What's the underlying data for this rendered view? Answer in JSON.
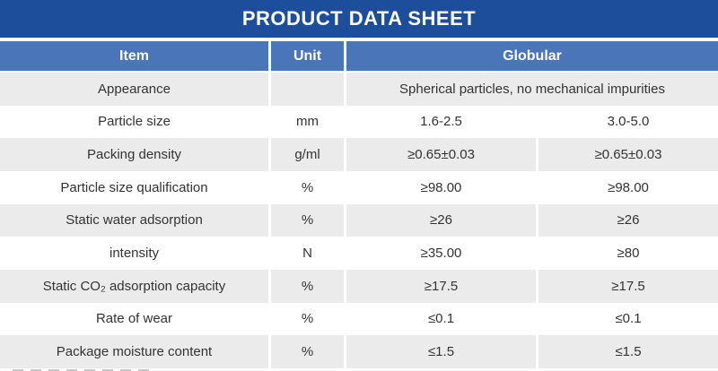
{
  "title": "PRODUCT DATA SHEET",
  "colors": {
    "title_bar": "#1d4e9b",
    "header_row": "#4a75b9",
    "row_alt": "#ebebeb",
    "row_white": "#ffffff",
    "text": "#333333"
  },
  "table": {
    "headers": {
      "item": "Item",
      "unit": "Unit",
      "group": "Globular"
    },
    "rows": [
      {
        "item": "Appearance",
        "unit": "",
        "value": "Spherical particles, no mechanical impurities"
      },
      {
        "item": "Particle size",
        "unit": "mm",
        "col1": "1.6-2.5",
        "col2": "3.0-5.0"
      },
      {
        "item": "Packing density",
        "unit": "g/ml",
        "col1": "≥0.65±0.03",
        "col2": "≥0.65±0.03"
      },
      {
        "item": "Particle size qualification",
        "unit": "%",
        "col1": "≥98.00",
        "col2": "≥98.00"
      },
      {
        "item": "Static water adsorption",
        "unit": "%",
        "col1": "≥26",
        "col2": "≥26"
      },
      {
        "item": "intensity",
        "unit": "N",
        "col1": "≥35.00",
        "col2": "≥80"
      },
      {
        "item": "Static CO₂ adsorption capacity",
        "unit": "%",
        "col1": "≥17.5",
        "col2": "≥17.5"
      },
      {
        "item": "Rate of wear",
        "unit": "%",
        "col1": "≤0.1",
        "col2": "≤0.1"
      },
      {
        "item": "Package moisture content",
        "unit": "%",
        "col1": "≤1.5",
        "col2": "≤1.5"
      }
    ]
  }
}
